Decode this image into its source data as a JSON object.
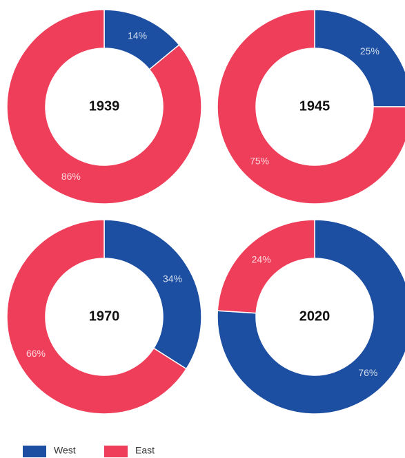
{
  "chart_data": [
    {
      "type": "pie",
      "title": "1939",
      "categories": [
        "West",
        "East"
      ],
      "values": [
        14,
        86
      ],
      "value_labels": [
        "14%",
        "86%"
      ],
      "colors": [
        "#1c4fa1",
        "#ef3e5a"
      ]
    },
    {
      "type": "pie",
      "title": "1945",
      "categories": [
        "West",
        "East"
      ],
      "values": [
        25,
        75
      ],
      "value_labels": [
        "25%",
        "75%"
      ],
      "colors": [
        "#1c4fa1",
        "#ef3e5a"
      ]
    },
    {
      "type": "pie",
      "title": "1970",
      "categories": [
        "West",
        "East"
      ],
      "values": [
        34,
        66
      ],
      "value_labels": [
        "34%",
        "66%"
      ],
      "colors": [
        "#1c4fa1",
        "#ef3e5a"
      ]
    },
    {
      "type": "pie",
      "title": "2020",
      "categories": [
        "West",
        "East"
      ],
      "values": [
        76,
        24
      ],
      "value_labels": [
        "76%",
        "24%"
      ],
      "colors": [
        "#1c4fa1",
        "#ef3e5a"
      ]
    }
  ]
}
